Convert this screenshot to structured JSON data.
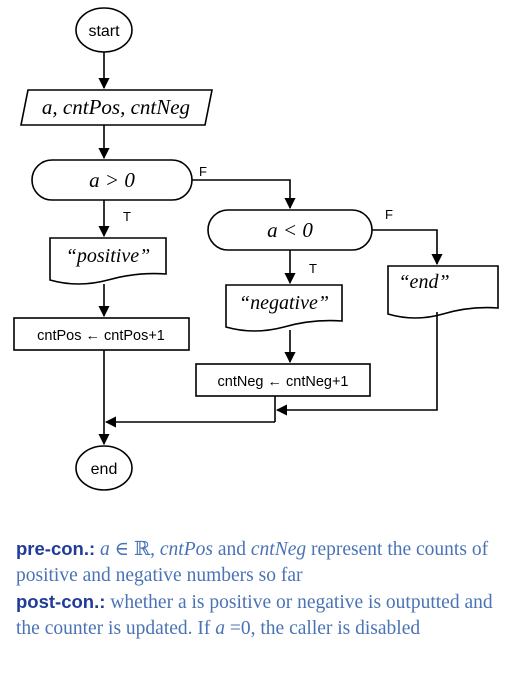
{
  "flowchart": {
    "start": "start",
    "input": "a, cntPos, cntNeg",
    "decision1": "a > 0",
    "decision2": "a < 0",
    "true_label": "T",
    "false_label": "F",
    "out_positive": "“positive”",
    "out_negative": "“negative”",
    "out_end": "“end”",
    "process_pos": "cntPos ← cntPos+1",
    "process_neg": "cntNeg ← cntNeg+1",
    "end": "end"
  },
  "caption": {
    "precon_label": "pre-con.:",
    "precon_a": "a",
    "precon_in": " ∈ ℝ, ",
    "precon_var1": "cntPos",
    "precon_and": " and ",
    "precon_var2": "cntNeg",
    "precon_rest": " represent the counts of positive and negative numbers so far",
    "postcon_label": "post-con.:",
    "postcon_text": " whether a is positive or negative is outputted and the counter is updated. If ",
    "postcon_a": "a",
    "postcon_cond": " =0, the caller is disabled"
  },
  "colors": {
    "stroke": "#000000",
    "caption_text": "#4a73b6",
    "caption_keyword": "#1f3c99"
  }
}
